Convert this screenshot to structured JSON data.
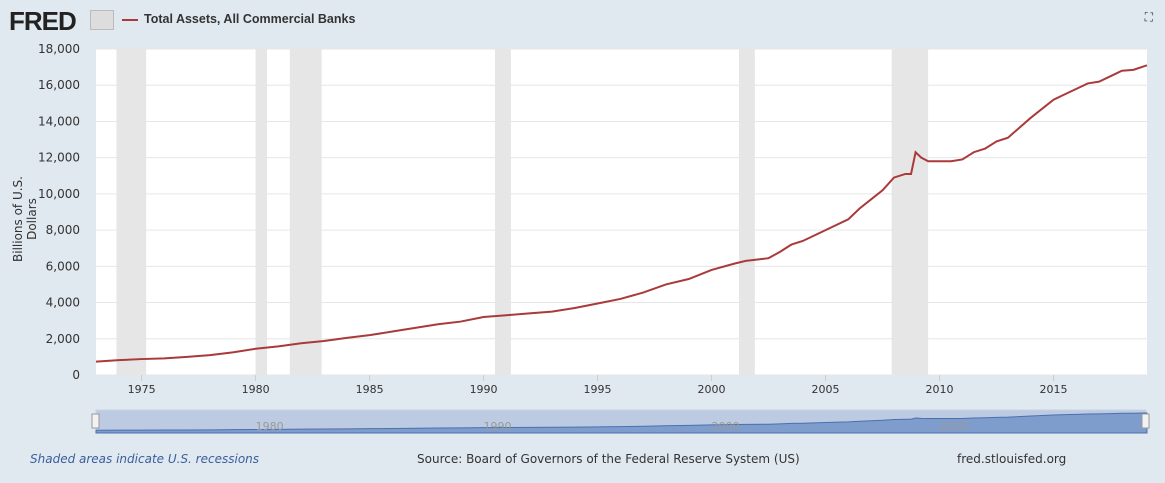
{
  "header": {
    "logo": "FRED",
    "series_title": "Total Assets, All Commercial Banks",
    "line_color": "#aa3a3a"
  },
  "chart_data": {
    "type": "line",
    "ylabel": "Billions of U.S. Dollars",
    "ylim": [
      0,
      18000
    ],
    "xlim": [
      1973,
      2019.1
    ],
    "yticks": [
      0,
      2000,
      4000,
      6000,
      8000,
      10000,
      12000,
      14000,
      16000,
      18000
    ],
    "ytick_labels": [
      "0",
      "2,000",
      "4,000",
      "6,000",
      "8,000",
      "10,000",
      "12,000",
      "14,000",
      "16,000",
      "18,000"
    ],
    "xticks": [
      "1975",
      "1980",
      "1985",
      "1990",
      "1995",
      "2000",
      "2005",
      "2010",
      "2015"
    ],
    "grid": true,
    "recessions": [
      [
        1973.9,
        1975.2
      ],
      [
        1980.0,
        1980.5
      ],
      [
        1981.5,
        1982.9
      ],
      [
        1990.5,
        1991.2
      ],
      [
        2001.2,
        2001.9
      ],
      [
        2007.9,
        2009.5
      ]
    ],
    "series": [
      {
        "name": "Total Assets, All Commercial Banks",
        "x": [
          1973,
          1974,
          1975,
          1976,
          1977,
          1978,
          1979,
          1980,
          1981,
          1982,
          1983,
          1984,
          1985,
          1986,
          1987,
          1988,
          1989,
          1990,
          1991,
          1992,
          1993,
          1994,
          1995,
          1996,
          1997,
          1998,
          1999,
          2000,
          2001,
          2001.5,
          2002.5,
          2003,
          2003.5,
          2004,
          2005,
          2006,
          2006.5,
          2007,
          2007.5,
          2008,
          2008.5,
          2008.75,
          2008.95,
          2009.2,
          2009.5,
          2010,
          2010.5,
          2011,
          2011.5,
          2012,
          2012.5,
          2013,
          2014,
          2015,
          2015.5,
          2016,
          2016.5,
          2017,
          2017.5,
          2018,
          2018.5,
          2019.1
        ],
        "values": [
          740,
          820,
          880,
          920,
          1000,
          1100,
          1250,
          1450,
          1580,
          1750,
          1880,
          2050,
          2200,
          2400,
          2600,
          2800,
          2950,
          3200,
          3300,
          3400,
          3500,
          3700,
          3950,
          4200,
          4550,
          5000,
          5300,
          5800,
          6150,
          6300,
          6450,
          6800,
          7200,
          7400,
          8000,
          8600,
          9200,
          9700,
          10200,
          10900,
          11100,
          11100,
          12300,
          12000,
          11800,
          11800,
          11800,
          11900,
          12300,
          12500,
          12900,
          13100,
          14200,
          15200,
          15500,
          15800,
          16100,
          16200,
          16500,
          16800,
          16850,
          17100
        ]
      }
    ]
  },
  "navigator": {
    "labels": [
      "1980",
      "1990",
      "2000",
      "2010"
    ]
  },
  "footer": {
    "recession_note": "Shaded areas indicate U.S. recessions",
    "source": "Source: Board of Governors of the Federal Reserve System (US)",
    "site": "fred.stlouisfed.org"
  }
}
